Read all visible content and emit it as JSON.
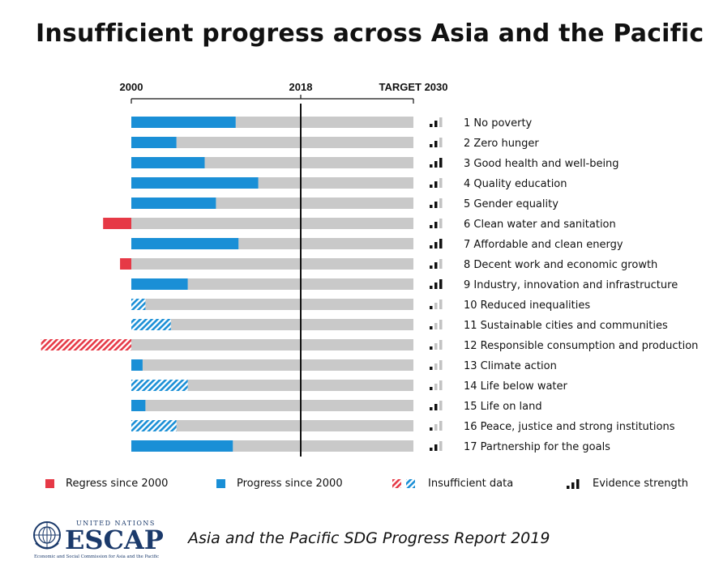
{
  "title": "Insufficient progress across Asia and the Pacific",
  "legend": {
    "regress": "Regress since 2000",
    "progress": "Progress since 2000",
    "insufficient": "Insufficient data",
    "evidence": "Evidence strength"
  },
  "footer": {
    "org_top": "UNITED NATIONS",
    "org_name": "ESCAP",
    "org_sub": "Economic and Social Commission for Asia and the Pacific",
    "report": "Asia and the Pacific SDG Progress Report 2019"
  },
  "colors": {
    "progress": "#1a8fd6",
    "regress": "#e63946",
    "remaining": "#c9c9c9",
    "evidence_on": "#111111",
    "evidence_off": "#c2c2c2"
  },
  "chart_data": {
    "type": "bar",
    "orientation": "horizontal",
    "x_axis_ticks": [
      "2000",
      "2018",
      "TARGET 2030"
    ],
    "xlim": [
      -0.6,
      1.0
    ],
    "reference_line": "2018",
    "categories": [
      "1 No poverty",
      "2 Zero hunger",
      "3 Good health and well-being",
      "4 Quality education",
      "5 Gender equality",
      "6 Clean water and sanitation",
      "7 Affordable and clean energy",
      "8 Decent work and economic growth",
      "9 Industry, innovation and infrastructure",
      "10 Reduced inequalities",
      "11 Sustainable cities and communities",
      "12 Responsible consumption and production",
      "13 Climate action",
      "14 Life below water",
      "15 Life on land",
      "16 Peace, justice and strong institutions",
      "17 Partnership for the goals"
    ],
    "values": [
      0.37,
      0.16,
      0.26,
      0.45,
      0.3,
      -0.1,
      0.38,
      -0.04,
      0.2,
      0.05,
      0.14,
      -0.32,
      0.04,
      0.2,
      0.05,
      0.16,
      0.36
    ],
    "insufficient_data": [
      false,
      false,
      false,
      false,
      false,
      false,
      false,
      false,
      false,
      true,
      true,
      true,
      false,
      true,
      false,
      true,
      false
    ],
    "evidence_strength": [
      2,
      2,
      3,
      2,
      2,
      2,
      3,
      2,
      3,
      1,
      1,
      1,
      1,
      1,
      2,
      1,
      2
    ]
  }
}
